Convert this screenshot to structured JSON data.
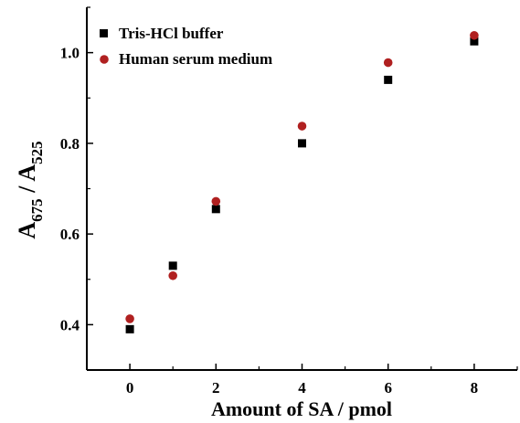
{
  "chart_data": {
    "type": "scatter",
    "title": "",
    "xlabel": "Amount of SA / pmol",
    "ylabel": {
      "prefix": "A",
      "sub1": "675",
      "sep": " / A",
      "sub2": "525"
    },
    "xlim": [
      -1,
      9
    ],
    "ylim": [
      0.3,
      1.1
    ],
    "xticks": [
      0,
      2,
      4,
      6,
      8
    ],
    "yticks": [
      0.4,
      0.6,
      0.8,
      1.0
    ],
    "xtick_labels": [
      "0",
      "2",
      "4",
      "6",
      "8"
    ],
    "ytick_labels": [
      "0.4",
      "0.6",
      "0.8",
      "1.0"
    ],
    "grid": false,
    "legend_position": "top-left",
    "series": [
      {
        "name": "Tris-HCl buffer",
        "marker": "square",
        "color": "#000000",
        "x": [
          0,
          1,
          2,
          4,
          6,
          8
        ],
        "y": [
          0.39,
          0.53,
          0.655,
          0.8,
          0.94,
          1.025
        ]
      },
      {
        "name": "Human serum medium",
        "marker": "circle",
        "color": "#b02020",
        "x": [
          0,
          1,
          2,
          4,
          6,
          8
        ],
        "y": [
          0.413,
          0.508,
          0.672,
          0.838,
          0.978,
          1.038
        ]
      }
    ]
  }
}
